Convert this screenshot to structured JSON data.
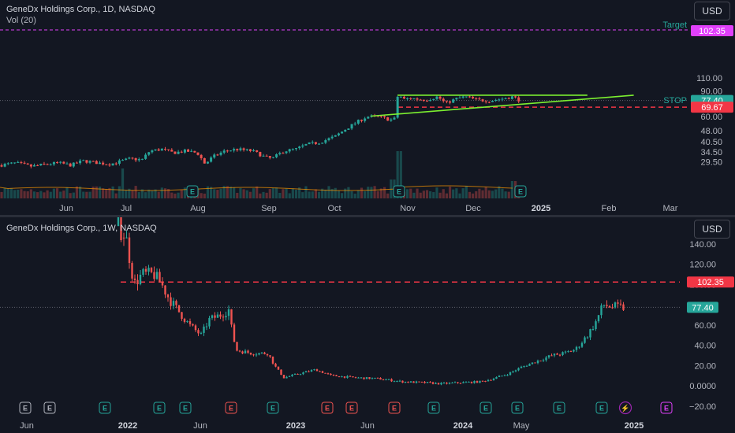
{
  "pane1": {
    "title": "GeneDx Holdings Corp., 1D, NASDAQ",
    "volume_label": "Vol (20)",
    "currency": "USD"
  },
  "pane2": {
    "title": "GeneDx Holdings Corp., 1W, NASDAQ",
    "currency": "USD"
  },
  "colors": {
    "up": "#26a69a",
    "down": "#ef5350",
    "target": "#e040fb",
    "stop": "#f23645",
    "trend": "#7cf030",
    "price": "#26a69a"
  },
  "chart_data": [
    {
      "type": "candlestick",
      "timeframe": "1D",
      "y_scale": "log",
      "y_ticks": [
        "110.00",
        "90.00",
        "75.00",
        "60.00",
        "48.00",
        "40.50",
        "34.50",
        "29.50"
      ],
      "x_ticks": [
        {
          "label": "Jun",
          "bold": false
        },
        {
          "label": "Jul",
          "bold": false
        },
        {
          "label": "Aug",
          "bold": false
        },
        {
          "label": "Sep",
          "bold": false
        },
        {
          "label": "Oct",
          "bold": false
        },
        {
          "label": "Nov",
          "bold": false
        },
        {
          "label": "Dec",
          "bold": false
        },
        {
          "label": "2025",
          "bold": true
        },
        {
          "label": "Feb",
          "bold": false
        },
        {
          "label": "Mar",
          "bold": false
        }
      ],
      "levels": {
        "target": {
          "label": "Target",
          "value": 102.35,
          "value_label": "102.35"
        },
        "stop": {
          "label": "STOP",
          "value": 69.67,
          "value_label": "69.67"
        },
        "last_price": {
          "value": 77.4,
          "value_label": "77.40"
        }
      },
      "trend_lines": [
        {
          "name": "resistance",
          "from": {
            "date": "2024-10-28",
            "y": 84
          },
          "to": {
            "date": "2025-01-22",
            "y": 84
          }
        },
        {
          "name": "support",
          "from": {
            "date": "2024-10-16",
            "y": 60.5
          },
          "to": {
            "date": "2025-02-12",
            "y": 84
          }
        }
      ],
      "series": [
        {
          "period": "2024-05 to 2024-07",
          "close_range": [
            27,
            30
          ]
        },
        {
          "period": "2024-07",
          "close_range": [
            30,
            36
          ]
        },
        {
          "period": "2024-08",
          "close_range": [
            28,
            36
          ]
        },
        {
          "period": "2024-09",
          "close_range": [
            31,
            40
          ]
        },
        {
          "period": "2024-10",
          "close_range": [
            40,
            60
          ]
        },
        {
          "period": "2024-11",
          "close_range": [
            56,
            85
          ]
        },
        {
          "period": "2024-12",
          "close_range": [
            70,
            85
          ]
        }
      ],
      "events": [
        "E",
        "E",
        "E"
      ]
    },
    {
      "type": "candlestick",
      "timeframe": "1W",
      "y_scale": "linear",
      "y_ticks": [
        "140.00",
        "120.00",
        "100.00",
        "80.00",
        "60.00",
        "40.00",
        "20.00",
        "0.0000",
        "−20.00"
      ],
      "x_ticks": [
        {
          "label": "Jun",
          "bold": false
        },
        {
          "label": "2022",
          "bold": true
        },
        {
          "label": "Jun",
          "bold": false
        },
        {
          "label": "2023",
          "bold": true
        },
        {
          "label": "Jun",
          "bold": false
        },
        {
          "label": "2024",
          "bold": true
        },
        {
          "label": "May",
          "bold": false
        },
        {
          "label": "2025",
          "bold": true
        }
      ],
      "levels": {
        "target": {
          "value": 102.35,
          "value_label": "102.35"
        },
        "last_price": {
          "value": 77.4,
          "value_label": "77.40"
        }
      },
      "events": [
        "E",
        "E",
        "E",
        "E",
        "E",
        "E",
        "E",
        "E",
        "E",
        "E",
        "E",
        "E",
        "E",
        "E",
        "E",
        "E",
        "E",
        "⚡",
        "E"
      ]
    }
  ]
}
